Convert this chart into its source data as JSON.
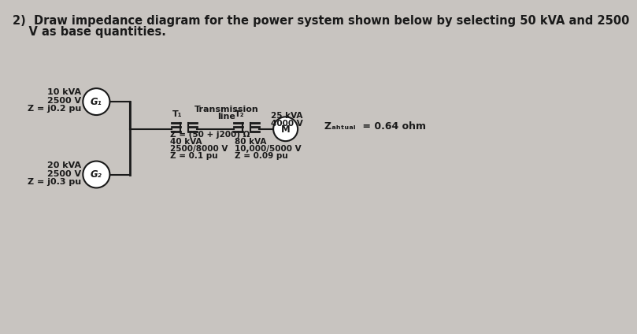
{
  "title_line1": "2)  Draw impedance diagram for the power system shown below by selecting 50 kVA and 2500",
  "title_line2": "    V as base quantities.",
  "title_fontsize": 10.5,
  "background_color": "#c8c4c0",
  "g1_label": "G₁",
  "g2_label": "G₂",
  "m_label": "M",
  "g1_specs": [
    "10 kVA",
    "2500 V",
    "Z = j0.2 pu"
  ],
  "g2_specs": [
    "20 kVA",
    "2500 V",
    "Z = j0.3 pu"
  ],
  "t1_label": "T₁",
  "t2_label": "T₂",
  "t1_specs": [
    "40 kVA",
    "2500/8000 V",
    "Z = 0.1 pu"
  ],
  "t2_specs": [
    "80 kVA",
    "10,000/5000 V",
    "Z = 0.09 pu"
  ],
  "m_specs": [
    "25 kVA",
    "4000 V"
  ],
  "transmission_label": "Transmission",
  "transmission_label2": "line",
  "transmission_z": "Z = (50 + j200) Ω",
  "zactual_label": "Zₐₕₜᵤₐₗ  = 0.64 ohm",
  "line_color": "#1a1a1a",
  "box_color": "#1a1a1a",
  "text_color_dark": "#1a1a1a",
  "wire_lw": 1.5
}
